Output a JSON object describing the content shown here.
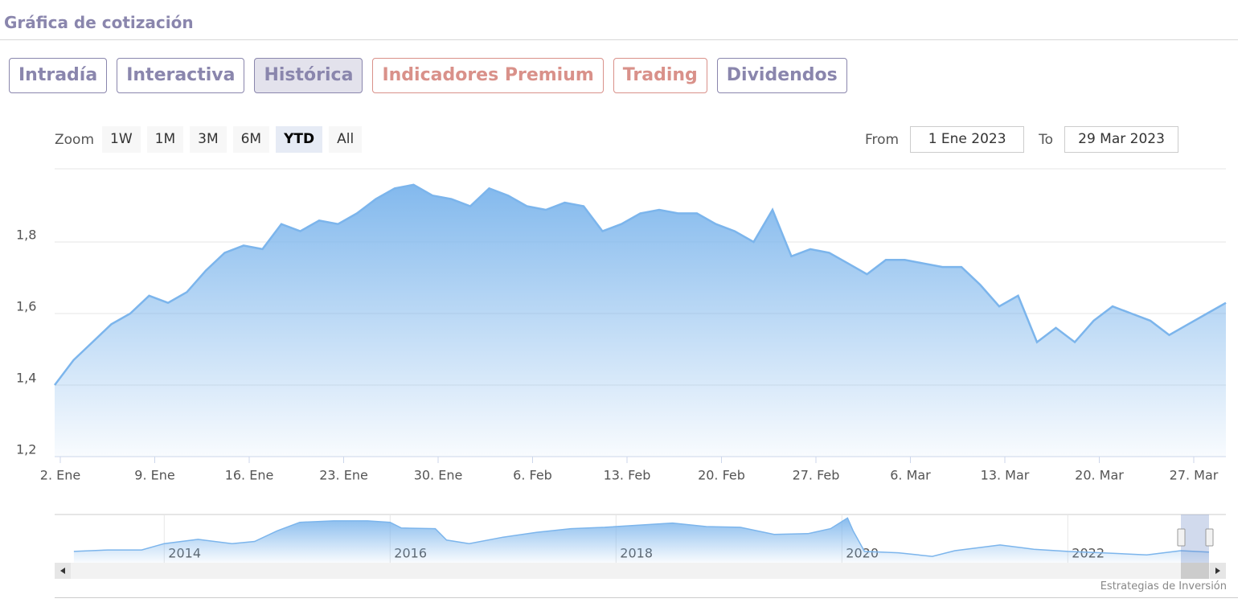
{
  "header": {
    "title": "Gráfica de cotización"
  },
  "tabs": {
    "active": 2,
    "items": [
      {
        "label": "Intradía",
        "color": "#8a86ad"
      },
      {
        "label": "Interactiva",
        "color": "#8a86ad"
      },
      {
        "label": "Histórica",
        "color": "#8a86ad"
      },
      {
        "label": "Indicadores Premium",
        "color": "#d9918a"
      },
      {
        "label": "Trading",
        "color": "#d9918a"
      },
      {
        "label": "Dividendos",
        "color": "#8a86ad"
      }
    ]
  },
  "zoom": {
    "label": "Zoom",
    "active": 4,
    "buttons": [
      "1W",
      "1M",
      "3M",
      "6M",
      "YTD",
      "All"
    ]
  },
  "range": {
    "from_label": "From",
    "from": "1 Ene 2023",
    "to_label": "To",
    "to": "29 Mar 2023"
  },
  "credit": "Estrategias de Inversión",
  "chart_data": [
    {
      "type": "area",
      "color": "#7cb5ec",
      "grid": true,
      "values": [
        1.4,
        1.47,
        1.52,
        1.57,
        1.6,
        1.65,
        1.63,
        1.66,
        1.72,
        1.77,
        1.79,
        1.78,
        1.85,
        1.83,
        1.86,
        1.85,
        1.88,
        1.92,
        1.95,
        1.96,
        1.93,
        1.92,
        1.9,
        1.95,
        1.93,
        1.9,
        1.89,
        1.91,
        1.9,
        1.83,
        1.85,
        1.88,
        1.89,
        1.88,
        1.88,
        1.85,
        1.83,
        1.8,
        1.89,
        1.76,
        1.78,
        1.77,
        1.74,
        1.71,
        1.75,
        1.75,
        1.74,
        1.73,
        1.73,
        1.68,
        1.62,
        1.65,
        1.52,
        1.56,
        1.52,
        1.58,
        1.62,
        1.6,
        1.58,
        1.54,
        1.57,
        1.6,
        1.63
      ],
      "xlim": [
        0,
        62
      ],
      "xticks": [
        {
          "value": 0,
          "label": "2. Ene"
        },
        {
          "value": 5,
          "label": "9. Ene"
        },
        {
          "value": 10,
          "label": "16. Ene"
        },
        {
          "value": 15,
          "label": "23. Ene"
        },
        {
          "value": 20,
          "label": "30. Ene"
        },
        {
          "value": 25,
          "label": "6. Feb"
        },
        {
          "value": 30,
          "label": "13. Feb"
        },
        {
          "value": 35,
          "label": "20. Feb"
        },
        {
          "value": 40,
          "label": "27. Feb"
        },
        {
          "value": 45,
          "label": "6. Mar"
        },
        {
          "value": 50,
          "label": "13. Mar"
        },
        {
          "value": 55,
          "label": "20. Mar"
        },
        {
          "value": 60,
          "label": "27. Mar"
        }
      ],
      "ylim": [
        1.2,
        2.0
      ],
      "yticks": [
        {
          "value": 1.2,
          "label": "1,2"
        },
        {
          "value": 1.4,
          "label": "1,4"
        },
        {
          "value": 1.6,
          "label": "1,6"
        },
        {
          "value": 1.8,
          "label": "1,8"
        }
      ]
    },
    {
      "type": "area",
      "color": "#7cb5ec",
      "grid": true,
      "x": [
        2013.2,
        2013.5,
        2013.8,
        2014.0,
        2014.3,
        2014.6,
        2014.8,
        2015.0,
        2015.2,
        2015.5,
        2015.8,
        2016.0,
        2016.1,
        2016.4,
        2016.5,
        2016.7,
        2017.0,
        2017.3,
        2017.6,
        2017.9,
        2018.2,
        2018.5,
        2018.8,
        2019.1,
        2019.4,
        2019.7,
        2019.9,
        2020.05,
        2020.1,
        2020.2,
        2020.5,
        2020.8,
        2021.0,
        2021.4,
        2021.7,
        2022.0,
        2022.3,
        2022.7,
        2023.0,
        2023.25
      ],
      "values": [
        1.6,
        1.8,
        1.8,
        2.7,
        3.3,
        2.7,
        3.0,
        4.5,
        5.7,
        5.9,
        5.9,
        5.7,
        4.9,
        4.8,
        3.2,
        2.7,
        3.6,
        4.3,
        4.8,
        5.0,
        5.3,
        5.6,
        5.1,
        5.0,
        4.0,
        4.1,
        4.8,
        6.3,
        4.5,
        1.6,
        1.4,
        0.9,
        1.7,
        2.5,
        1.9,
        1.6,
        1.4,
        1.1,
        1.7,
        1.5
      ],
      "xlim": [
        2013.03,
        2023.4
      ],
      "xticks": [
        2014,
        2016,
        2018,
        2020,
        2022
      ],
      "ylim": [
        0,
        6.8
      ]
    }
  ]
}
